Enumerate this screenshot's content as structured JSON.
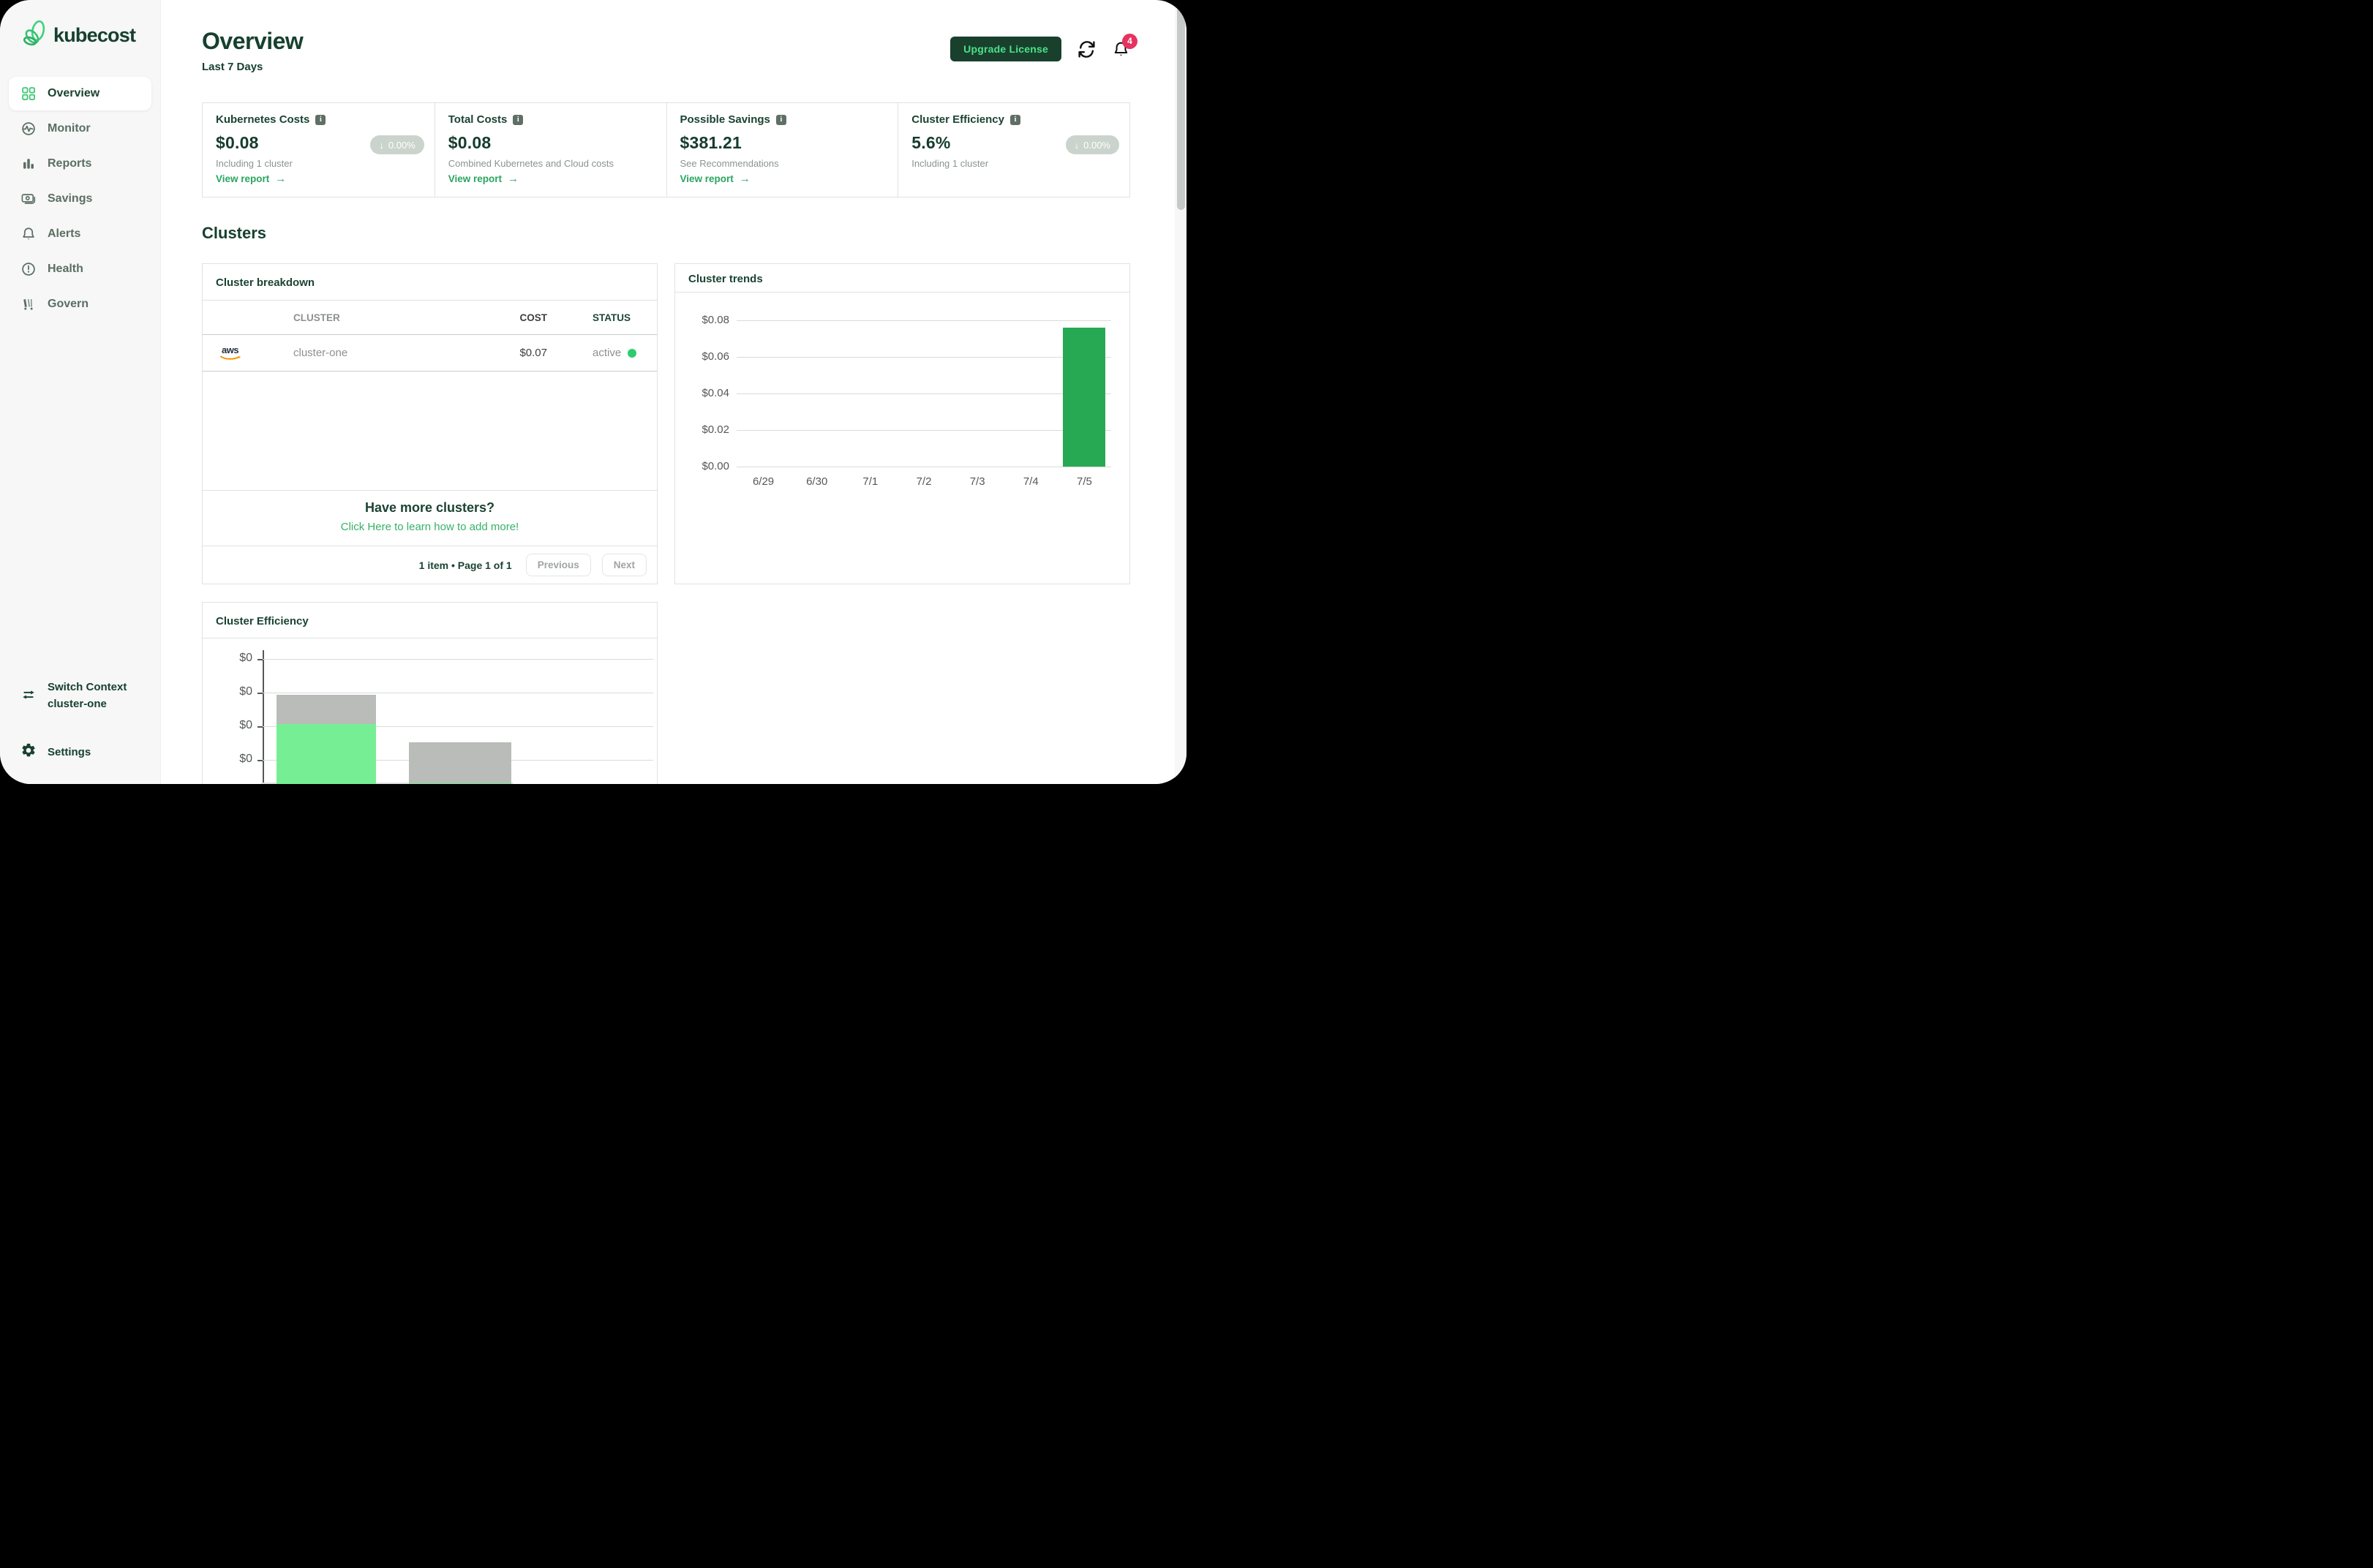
{
  "app": {
    "logo_text": "kubecost"
  },
  "sidebar": {
    "items": [
      {
        "label": "Overview",
        "icon": "grid-icon",
        "active": true
      },
      {
        "label": "Monitor",
        "icon": "monitor-pulse-icon",
        "active": false
      },
      {
        "label": "Reports",
        "icon": "bar-chart-icon",
        "active": false
      },
      {
        "label": "Savings",
        "icon": "money-icon",
        "active": false
      },
      {
        "label": "Alerts",
        "icon": "bell-icon",
        "active": false
      },
      {
        "label": "Health",
        "icon": "health-alert-icon",
        "active": false
      },
      {
        "label": "Govern",
        "icon": "govern-road-icon",
        "active": false
      }
    ],
    "switch_context": {
      "title": "Switch Context",
      "subtitle": "cluster-one"
    },
    "settings_label": "Settings"
  },
  "header": {
    "title": "Overview",
    "subtitle": "Last 7 Days",
    "upgrade_button": "Upgrade License",
    "notification_count": "4"
  },
  "stat_cards": [
    {
      "title": "Kubernetes Costs",
      "value": "$0.08",
      "badge": "0.00%",
      "subtitle": "Including 1 cluster",
      "link": "View report"
    },
    {
      "title": "Total Costs",
      "value": "$0.08",
      "badge": null,
      "subtitle": "Combined Kubernetes and Cloud costs",
      "link": "View report"
    },
    {
      "title": "Possible Savings",
      "value": "$381.21",
      "badge": null,
      "subtitle": "See Recommendations",
      "link": "View report"
    },
    {
      "title": "Cluster Efficiency",
      "value": "5.6%",
      "badge": "0.00%",
      "subtitle": "Including 1 cluster",
      "link": null
    }
  ],
  "clusters_section": {
    "heading": "Clusters",
    "breakdown": {
      "title": "Cluster breakdown",
      "columns": [
        "CLUSTER",
        "COST",
        "STATUS"
      ],
      "rows": [
        {
          "provider": "aws",
          "cluster": "cluster-one",
          "cost": "$0.07",
          "status": "active"
        }
      ],
      "more_title": "Have more clusters?",
      "more_link": "Click Here to learn how to add more!",
      "pagination": "1 item • Page 1 of 1",
      "prev_label": "Previous",
      "next_label": "Next"
    }
  },
  "chart_data": [
    {
      "id": "cluster-trends",
      "type": "bar",
      "title": "Cluster trends",
      "x": [
        "6/29",
        "6/30",
        "7/1",
        "7/2",
        "7/3",
        "7/4",
        "7/5"
      ],
      "values": [
        0,
        0,
        0,
        0,
        0,
        0,
        0.076
      ],
      "ytick_labels": [
        "$0.08",
        "$0.06",
        "$0.04",
        "$0.02",
        "$0.00"
      ],
      "ylim": [
        0,
        0.08
      ],
      "xlabel": "",
      "ylabel": "",
      "grid": true,
      "legend": false,
      "bar_color": "#27a954"
    },
    {
      "id": "cluster-efficiency",
      "type": "stacked-bar",
      "title": "Cluster Efficiency",
      "note": "chart truncated by bottom edge of viewport; x-axis labels not visible",
      "ytick_labels": [
        "$0",
        "$0",
        "$0",
        "$0"
      ],
      "ylim": [
        0,
        0.08
      ],
      "grid": true,
      "legend": false,
      "bars": [
        {
          "segments": [
            {
              "name": "idle",
              "color": "#b9bcb9",
              "value": 0.017
            },
            {
              "name": "used",
              "color": "#76ef94",
              "value": 0.0415
            }
          ]
        },
        {
          "segments": [
            {
              "name": "idle",
              "color": "#b9bcb9",
              "value": 0.0245
            },
            {
              "name": "used",
              "color": "#76ef94",
              "value": 0.006
            }
          ]
        }
      ]
    }
  ],
  "colors": {
    "dark_green": "#17402f",
    "accent_green": "#2aa55f",
    "button_text_green": "#4de188",
    "trend_bar_green": "#27a954",
    "efficiency_green": "#76ef94",
    "efficiency_gray": "#b9bcb9",
    "badge_pill_bg": "#cbd3cd",
    "notification_red": "#e5335f",
    "status_dot_green": "#2ecc70",
    "border_gray": "#dfe3e0"
  }
}
